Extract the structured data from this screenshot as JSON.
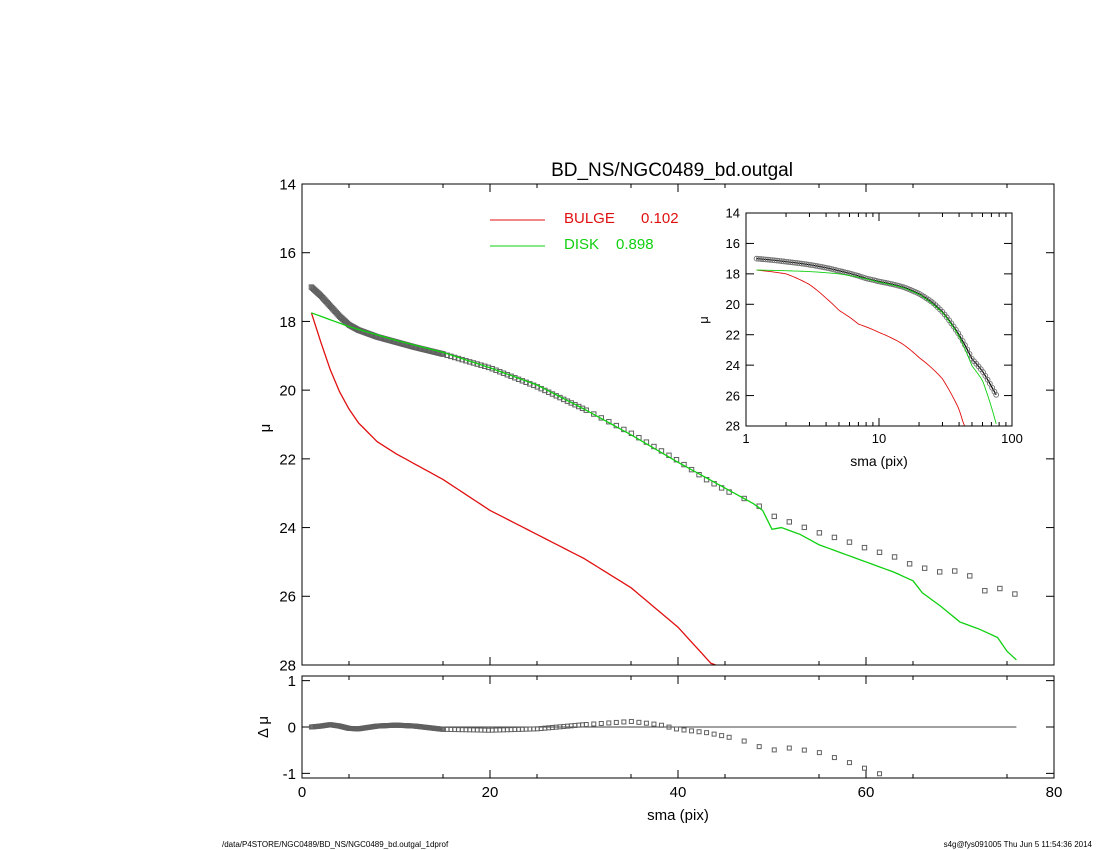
{
  "footer": {
    "path": "/data/P4STORE/NGC0489/BD_NS/NGC0489_bd.outgal_1dprof",
    "stamp": "s4g@fys091005  Thu Jun  5 11:54:36 2014"
  },
  "colors": {
    "bulge": "#e01010",
    "disk": "#10d010",
    "data": "#606060",
    "axis": "#000000"
  },
  "chart_data": [
    {
      "id": "main",
      "type": "scatter",
      "title": "BD_NS/NGC0489_bd.outgal",
      "xlabel": "",
      "ylabel": "μ",
      "xlim": [
        0,
        80
      ],
      "ylim": [
        28,
        14
      ],
      "y_inverted": true,
      "x_ticks": [
        0,
        20,
        40,
        60,
        80
      ],
      "y_ticks": [
        14,
        16,
        18,
        20,
        22,
        24,
        26,
        28
      ],
      "legend": {
        "placement": "top-center",
        "entries": [
          {
            "label": "BULGE",
            "value": "0.102",
            "color": "#e01010"
          },
          {
            "label": "DISK",
            "value": "0.898",
            "color": "#10d010"
          }
        ]
      },
      "series": [
        {
          "name": "data",
          "kind": "points",
          "knots": [
            [
              1,
              17.0
            ],
            [
              2,
              17.25
            ],
            [
              3,
              17.55
            ],
            [
              4,
              17.85
            ],
            [
              5,
              18.1
            ],
            [
              6,
              18.25
            ],
            [
              8,
              18.45
            ],
            [
              10,
              18.6
            ],
            [
              12,
              18.75
            ],
            [
              15,
              18.95
            ],
            [
              20,
              19.35
            ],
            [
              25,
              19.9
            ],
            [
              30,
              20.55
            ],
            [
              35,
              21.25
            ],
            [
              40,
              22.05
            ],
            [
              43,
              22.6
            ],
            [
              46,
              23.05
            ],
            [
              48,
              23.25
            ],
            [
              50,
              23.65
            ],
            [
              52,
              23.85
            ],
            [
              55,
              24.15
            ],
            [
              58,
              24.4
            ],
            [
              60,
              24.6
            ],
            [
              63,
              24.85
            ],
            [
              65,
              25.1
            ],
            [
              68,
              25.3
            ],
            [
              70,
              25.25
            ],
            [
              72,
              25.55
            ],
            [
              73,
              26.0
            ],
            [
              74,
              25.75
            ],
            [
              76,
              25.95
            ]
          ]
        },
        {
          "name": "BULGE",
          "kind": "line",
          "knots": [
            [
              1,
              17.75
            ],
            [
              2,
              18.6
            ],
            [
              3,
              19.4
            ],
            [
              4,
              20.05
            ],
            [
              5,
              20.55
            ],
            [
              6,
              20.95
            ],
            [
              8,
              21.5
            ],
            [
              10,
              21.85
            ],
            [
              12,
              22.15
            ],
            [
              15,
              22.6
            ],
            [
              20,
              23.5
            ],
            [
              25,
              24.2
            ],
            [
              30,
              24.9
            ],
            [
              35,
              25.75
            ],
            [
              40,
              26.9
            ],
            [
              42,
              27.5
            ],
            [
              44,
              28.1
            ]
          ]
        },
        {
          "name": "DISK",
          "kind": "line",
          "knots": [
            [
              1,
              17.75
            ],
            [
              5,
              18.15
            ],
            [
              10,
              18.55
            ],
            [
              15,
              18.9
            ],
            [
              20,
              19.35
            ],
            [
              25,
              19.85
            ],
            [
              30,
              20.55
            ],
            [
              35,
              21.3
            ],
            [
              40,
              22.1
            ],
            [
              45,
              22.85
            ],
            [
              48,
              23.3
            ],
            [
              49,
              23.5
            ],
            [
              50,
              24.05
            ],
            [
              51,
              24.0
            ],
            [
              53,
              24.2
            ],
            [
              55,
              24.5
            ],
            [
              58,
              24.8
            ],
            [
              60,
              25.0
            ],
            [
              63,
              25.3
            ],
            [
              65,
              25.55
            ],
            [
              66,
              25.9
            ],
            [
              68,
              26.3
            ],
            [
              70,
              26.75
            ],
            [
              72,
              26.95
            ],
            [
              74,
              27.2
            ],
            [
              75,
              27.6
            ],
            [
              76,
              27.85
            ]
          ]
        }
      ]
    },
    {
      "id": "inset",
      "type": "line",
      "title": "",
      "xlabel": "sma (pix)",
      "ylabel": "μ",
      "x_scale": "log",
      "xlim": [
        1,
        100
      ],
      "ylim": [
        28,
        14
      ],
      "y_inverted": true,
      "x_ticks": [
        1,
        10,
        100
      ],
      "y_ticks": [
        14,
        16,
        18,
        20,
        22,
        24,
        26,
        28
      ],
      "series": [
        {
          "name": "data",
          "kind": "line+points",
          "knots": [
            [
              1.2,
              17.0
            ],
            [
              2,
              17.2
            ],
            [
              3,
              17.4
            ],
            [
              5,
              17.8
            ],
            [
              8,
              18.3
            ],
            [
              10,
              18.5
            ],
            [
              15,
              18.85
            ],
            [
              20,
              19.3
            ],
            [
              25,
              19.85
            ],
            [
              30,
              20.5
            ],
            [
              40,
              22.0
            ],
            [
              50,
              23.6
            ],
            [
              60,
              24.4
            ],
            [
              70,
              25.4
            ],
            [
              76,
              25.95
            ]
          ]
        },
        {
          "name": "BULGE",
          "kind": "line",
          "knots": [
            [
              1.2,
              17.75
            ],
            [
              2,
              18.0
            ],
            [
              3,
              18.7
            ],
            [
              4,
              19.6
            ],
            [
              5,
              20.4
            ],
            [
              7,
              21.3
            ],
            [
              10,
              21.85
            ],
            [
              15,
              22.6
            ],
            [
              20,
              23.5
            ],
            [
              30,
              24.9
            ],
            [
              40,
              26.9
            ],
            [
              44,
              28.1
            ]
          ]
        },
        {
          "name": "DISK",
          "kind": "line",
          "knots": [
            [
              1.2,
              17.75
            ],
            [
              3,
              17.85
            ],
            [
              5,
              18.0
            ],
            [
              10,
              18.55
            ],
            [
              15,
              18.9
            ],
            [
              20,
              19.35
            ],
            [
              30,
              20.55
            ],
            [
              40,
              22.1
            ],
            [
              50,
              24.05
            ],
            [
              60,
              25.0
            ],
            [
              70,
              26.75
            ],
            [
              76,
              27.85
            ]
          ]
        }
      ]
    },
    {
      "id": "residual",
      "type": "scatter",
      "title": "",
      "xlabel": "sma (pix)",
      "ylabel": "Δ μ",
      "xlim": [
        0,
        80
      ],
      "ylim": [
        -1.1,
        1.1
      ],
      "x_ticks": [
        0,
        20,
        40,
        60,
        80
      ],
      "y_ticks": [
        -1,
        0,
        1
      ],
      "zero_line": {
        "x_from": 1,
        "x_to": 76,
        "y": 0
      },
      "series": [
        {
          "name": "residual",
          "kind": "points",
          "knots": [
            [
              1,
              0.0
            ],
            [
              2,
              0.02
            ],
            [
              3,
              0.05
            ],
            [
              4,
              0.02
            ],
            [
              5,
              -0.03
            ],
            [
              6,
              -0.04
            ],
            [
              8,
              0.02
            ],
            [
              10,
              0.04
            ],
            [
              12,
              0.02
            ],
            [
              15,
              -0.05
            ],
            [
              20,
              -0.07
            ],
            [
              25,
              -0.04
            ],
            [
              30,
              0.05
            ],
            [
              35,
              0.12
            ],
            [
              38,
              0.05
            ],
            [
              40,
              -0.05
            ],
            [
              43,
              -0.12
            ],
            [
              45,
              -0.2
            ],
            [
              47,
              -0.3
            ],
            [
              49,
              -0.45
            ],
            [
              50,
              -0.5
            ],
            [
              52,
              -0.45
            ],
            [
              55,
              -0.55
            ],
            [
              58,
              -0.75
            ],
            [
              60,
              -0.9
            ],
            [
              62,
              -1.05
            ]
          ]
        }
      ]
    }
  ]
}
